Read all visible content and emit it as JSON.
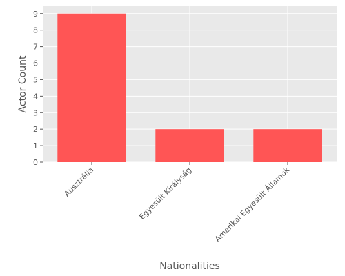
{
  "chart_data": {
    "type": "bar",
    "title": "",
    "xlabel": "Nationalities",
    "ylabel": "Actor Count",
    "categories": [
      "Ausztrália",
      "Egyesült Királyság",
      "Amerikai Egyesült Államok"
    ],
    "values": [
      9,
      2,
      2
    ],
    "ylim": [
      0,
      9.45
    ],
    "yticks": [
      0,
      1,
      2,
      3,
      4,
      5,
      6,
      7,
      8,
      9
    ],
    "grid": true,
    "style": "ggplot",
    "colors": {
      "bar": "#ff5555",
      "panel_background": "#e9e9e9",
      "grid": "#ffffff",
      "text": "#555555"
    }
  }
}
